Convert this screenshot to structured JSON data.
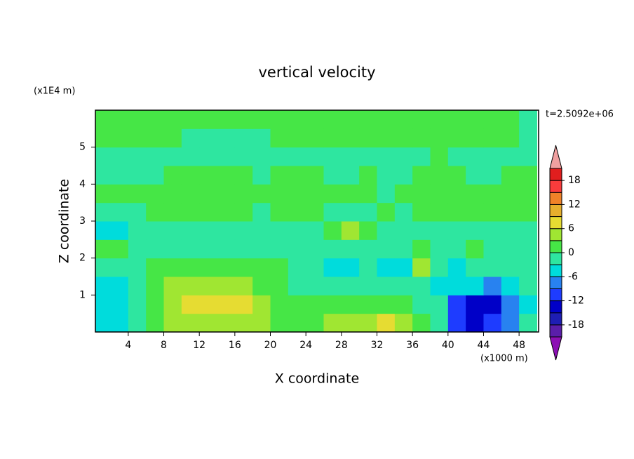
{
  "chart_data": {
    "type": "heatmap",
    "title": "vertical velocity",
    "x_label": "X coordinate",
    "y_label": "Z coordinate",
    "x_unit": "(x1000 m)",
    "y_unit": "(x1E4 m)",
    "time_label": "t=2.5092e+06",
    "x": [
      1,
      3,
      5,
      7,
      9,
      11,
      13,
      15,
      17,
      19,
      21,
      23,
      25,
      27,
      29,
      31,
      33,
      35,
      37,
      39,
      41,
      43,
      45,
      47,
      49
    ],
    "y": [
      0.25,
      0.75,
      1.25,
      1.75,
      2.25,
      2.75,
      3.25,
      3.75,
      4.25,
      4.75,
      5.25,
      5.75
    ],
    "values": [
      [
        -4,
        -4,
        -1,
        1,
        4,
        4,
        4,
        4,
        4,
        4,
        1,
        1,
        1,
        4,
        4,
        4,
        7,
        4,
        1,
        -1,
        -10,
        -13,
        -10,
        -7,
        -1
      ],
      [
        -4,
        -4,
        -1,
        1,
        4,
        7,
        7,
        8,
        7,
        4,
        1,
        1,
        1,
        1,
        1,
        1,
        1,
        1,
        -1,
        -1,
        -10,
        -13,
        -13,
        -7,
        -4
      ],
      [
        -4,
        -4,
        -1,
        1,
        4,
        4,
        4,
        4,
        4,
        1,
        1,
        -1,
        -1,
        -1,
        -1,
        -1,
        -1,
        -1,
        -1,
        -4,
        -4,
        -4,
        -7,
        -4,
        -1
      ],
      [
        -1,
        -1,
        -1,
        1,
        1,
        1,
        1,
        1,
        1,
        1,
        1,
        -1,
        -1,
        -4,
        -4,
        -1,
        -4,
        -4,
        4,
        -1,
        -4,
        -1,
        -1,
        -1,
        -1
      ],
      [
        1,
        1,
        -1,
        -1,
        -1,
        -1,
        -1,
        -1,
        -1,
        -1,
        -1,
        -1,
        -1,
        -1,
        -1,
        -1,
        -1,
        -1,
        1,
        -1,
        -1,
        1,
        -1,
        -1,
        -1
      ],
      [
        -4,
        -4,
        -1,
        -1,
        -1,
        -1,
        -1,
        -1,
        -1,
        -1,
        -1,
        -1,
        -1,
        1,
        4,
        1,
        -1,
        -1,
        -1,
        -1,
        -1,
        -1,
        -1,
        -1,
        -1
      ],
      [
        -1,
        -1,
        -1,
        1,
        1,
        1,
        1,
        1,
        1,
        -1,
        1,
        1,
        1,
        -1,
        -1,
        -1,
        1,
        -1,
        1,
        1,
        1,
        1,
        1,
        1,
        1
      ],
      [
        1,
        1,
        1,
        1,
        1,
        1,
        1,
        1,
        1,
        1,
        1,
        1,
        1,
        1,
        1,
        1,
        -1,
        1,
        1,
        1,
        1,
        1,
        1,
        1,
        1
      ],
      [
        -1,
        -1,
        -1,
        -1,
        1,
        1,
        1,
        1,
        1,
        -1,
        1,
        1,
        1,
        -1,
        -1,
        1,
        -1,
        -1,
        1,
        1,
        1,
        -1,
        -1,
        1,
        1
      ],
      [
        -1,
        -1,
        -1,
        -1,
        -1,
        -1,
        -1,
        -1,
        -1,
        -1,
        -1,
        -1,
        -1,
        -1,
        -1,
        -1,
        -1,
        -1,
        -1,
        1,
        -1,
        -1,
        -1,
        -1,
        -1
      ],
      [
        1,
        1,
        1,
        1,
        1,
        -1,
        -1,
        -1,
        -1,
        -1,
        1,
        1,
        1,
        1,
        1,
        1,
        1,
        1,
        1,
        1,
        1,
        1,
        1,
        1,
        -1
      ],
      [
        1,
        1,
        1,
        1,
        1,
        1,
        1,
        1,
        1,
        1,
        1,
        1,
        1,
        1,
        1,
        1,
        1,
        1,
        1,
        1,
        1,
        1,
        1,
        1,
        -1
      ]
    ],
    "xlim": [
      0.3,
      50.2
    ],
    "ylim": [
      0,
      6
    ],
    "xticks": [
      4,
      8,
      12,
      16,
      20,
      24,
      28,
      32,
      36,
      40,
      44,
      48
    ],
    "yticks": [
      1,
      2,
      3,
      4,
      5
    ],
    "levels": [
      -21,
      -18,
      -15,
      -12,
      -9,
      -6,
      -3,
      0,
      3,
      6,
      9,
      12,
      15,
      18,
      21
    ],
    "colors": [
      "#8c10b4",
      "#5a1eaa",
      "#1e1eb4",
      "#0000c8",
      "#1e3cff",
      "#2882f0",
      "#00dcdc",
      "#2ee6a0",
      "#46e646",
      "#a0e632",
      "#e6dc32",
      "#e6af2d",
      "#f08228",
      "#fa3c3c",
      "#e11e1e",
      "#f0a0a0"
    ],
    "colorbar_ticks": [
      18,
      12,
      6,
      0,
      -6,
      -12,
      -18
    ]
  }
}
